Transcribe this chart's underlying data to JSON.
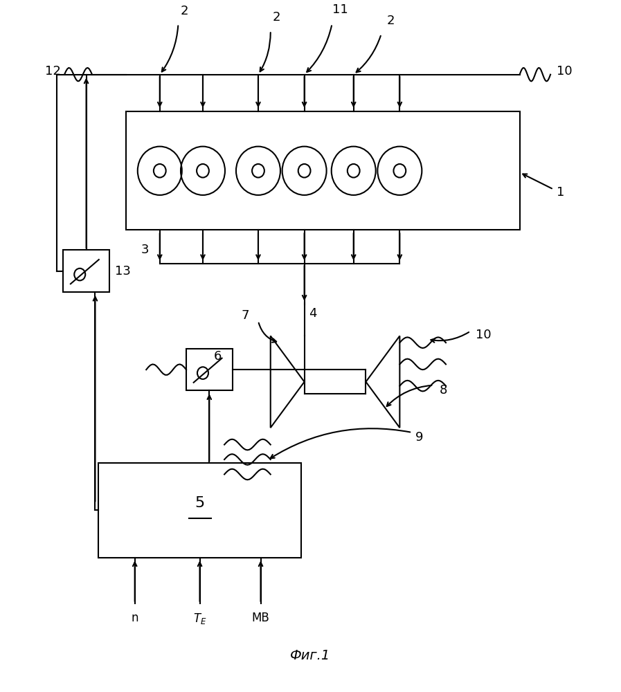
{
  "bg_color": "#ffffff",
  "line_color": "#000000",
  "title": "Фиг.1",
  "fig_width": 8.97,
  "fig_height": 10.0
}
